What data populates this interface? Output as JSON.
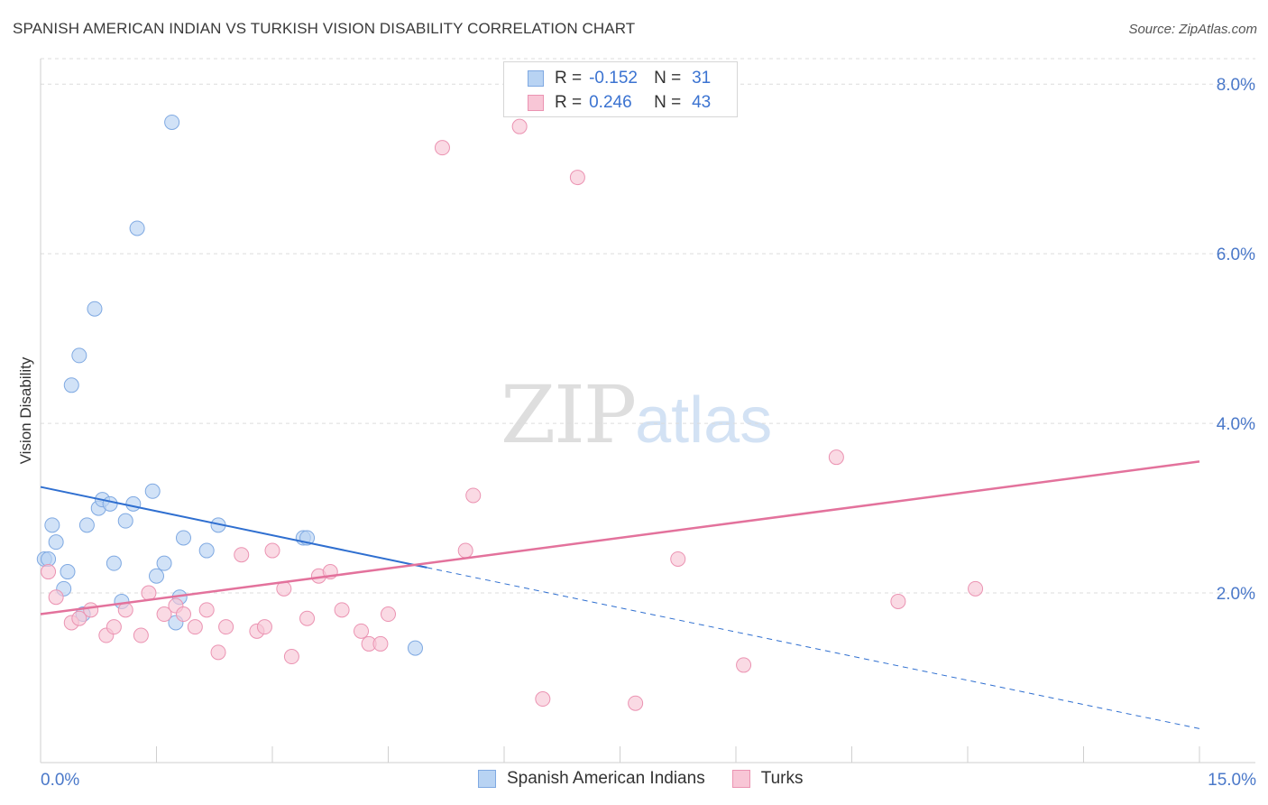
{
  "header": {
    "title": "SPANISH AMERICAN INDIAN VS TURKISH VISION DISABILITY CORRELATION CHART",
    "source": "Source: ZipAtlas.com"
  },
  "watermark": {
    "zip": "ZIP",
    "atlas": "atlas"
  },
  "legend_top": {
    "rows": [
      {
        "r_label": "R = ",
        "r_value": "-0.152",
        "n_label": "N = ",
        "n_value": "31"
      },
      {
        "r_label": "R = ",
        "r_value": "0.246",
        "n_label": "N = ",
        "n_value": "43"
      }
    ]
  },
  "legend_bottom": [
    "Spanish American Indians",
    "Turks"
  ],
  "colors": {
    "blue_fill": "#b8d3f3",
    "blue_stroke": "#7fa9e2",
    "blue_line": "#2f6fd0",
    "pink_fill": "#f8c6d6",
    "pink_stroke": "#eb93b2",
    "pink_line": "#e3729c",
    "tick_label": "#4a78c9",
    "grid": "#dcdcdc"
  },
  "chart_data": {
    "type": "scatter",
    "title": "SPANISH AMERICAN INDIAN VS TURKISH VISION DISABILITY CORRELATION CHART",
    "xlabel": "",
    "ylabel": "Vision Disability",
    "xlim": [
      0,
      15
    ],
    "ylim": [
      0,
      8.3
    ],
    "x_tick_labels": [
      "0.0%",
      "15.0%"
    ],
    "y_ticks": [
      2,
      4,
      6,
      8
    ],
    "y_tick_labels": [
      "2.0%",
      "4.0%",
      "6.0%",
      "8.0%"
    ],
    "grid": "horizontal dashed",
    "legend_position": "top-center",
    "series": [
      {
        "name": "Spanish American Indians",
        "r": -0.152,
        "n": 31,
        "points": [
          [
            0.05,
            2.4
          ],
          [
            0.1,
            2.4
          ],
          [
            0.15,
            2.8
          ],
          [
            0.2,
            2.6
          ],
          [
            0.3,
            2.05
          ],
          [
            0.35,
            2.25
          ],
          [
            0.4,
            4.45
          ],
          [
            0.5,
            4.8
          ],
          [
            0.55,
            1.75
          ],
          [
            0.6,
            2.8
          ],
          [
            0.7,
            5.35
          ],
          [
            0.75,
            3.0
          ],
          [
            0.8,
            3.1
          ],
          [
            0.9,
            3.05
          ],
          [
            0.95,
            2.35
          ],
          [
            1.05,
            1.9
          ],
          [
            1.1,
            2.85
          ],
          [
            1.2,
            3.05
          ],
          [
            1.25,
            6.3
          ],
          [
            1.45,
            3.2
          ],
          [
            1.5,
            2.2
          ],
          [
            1.6,
            2.35
          ],
          [
            1.7,
            7.55
          ],
          [
            1.75,
            1.65
          ],
          [
            1.8,
            1.95
          ],
          [
            1.85,
            2.65
          ],
          [
            2.15,
            2.5
          ],
          [
            2.3,
            2.8
          ],
          [
            3.4,
            2.65
          ],
          [
            3.45,
            2.65
          ],
          [
            4.85,
            1.35
          ]
        ],
        "trend": {
          "x0": 0.0,
          "y0": 3.25,
          "x1": 5.0,
          "y1": 2.3,
          "dashed_to_x": 15.0,
          "dashed_to_y": 0.4
        }
      },
      {
        "name": "Turks",
        "r": 0.246,
        "n": 43,
        "points": [
          [
            0.1,
            2.25
          ],
          [
            0.2,
            1.95
          ],
          [
            0.4,
            1.65
          ],
          [
            0.5,
            1.7
          ],
          [
            0.65,
            1.8
          ],
          [
            0.85,
            1.5
          ],
          [
            0.95,
            1.6
          ],
          [
            1.1,
            1.8
          ],
          [
            1.3,
            1.5
          ],
          [
            1.4,
            2.0
          ],
          [
            1.6,
            1.75
          ],
          [
            1.75,
            1.85
          ],
          [
            1.85,
            1.75
          ],
          [
            2.0,
            1.6
          ],
          [
            2.15,
            1.8
          ],
          [
            2.3,
            1.3
          ],
          [
            2.4,
            1.6
          ],
          [
            2.6,
            2.45
          ],
          [
            2.8,
            1.55
          ],
          [
            2.9,
            1.6
          ],
          [
            3.0,
            2.5
          ],
          [
            3.15,
            2.05
          ],
          [
            3.25,
            1.25
          ],
          [
            3.45,
            1.7
          ],
          [
            3.6,
            2.2
          ],
          [
            3.75,
            2.25
          ],
          [
            3.9,
            1.8
          ],
          [
            4.15,
            1.55
          ],
          [
            4.25,
            1.4
          ],
          [
            4.4,
            1.4
          ],
          [
            4.5,
            1.75
          ],
          [
            5.2,
            7.25
          ],
          [
            5.5,
            2.5
          ],
          [
            5.6,
            3.15
          ],
          [
            6.2,
            7.5
          ],
          [
            6.5,
            0.75
          ],
          [
            6.95,
            6.9
          ],
          [
            7.7,
            0.7
          ],
          [
            8.25,
            2.4
          ],
          [
            9.1,
            1.15
          ],
          [
            10.3,
            3.6
          ],
          [
            11.1,
            1.9
          ],
          [
            12.1,
            2.05
          ]
        ],
        "trend": {
          "x0": 0.0,
          "y0": 1.75,
          "x1": 15.0,
          "y1": 3.55
        }
      }
    ]
  }
}
